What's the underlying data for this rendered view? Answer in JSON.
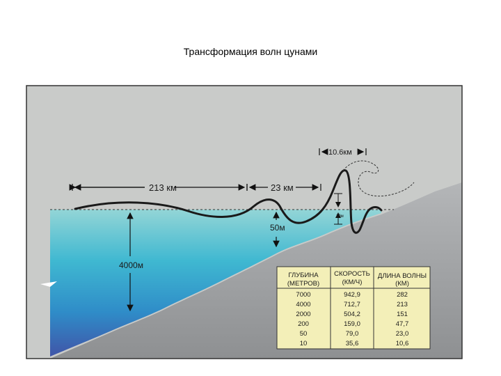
{
  "title": "Трансформация волн цунами",
  "labels": {
    "distance_1": "213 км",
    "distance_2": "23 км",
    "distance_3": "10.6км",
    "wave_height": "10м",
    "depth_50": "50м",
    "depth_4000": "4000м"
  },
  "table": {
    "headers": [
      [
        "ГЛУБИНА",
        "(МЕТРОВ)"
      ],
      [
        "СКОРОСТЬ",
        "(КМ/Ч)"
      ],
      [
        "ДЛИНА ВОЛНЫ",
        "(КМ)"
      ]
    ],
    "rows": [
      [
        "7000",
        "942,9",
        "282"
      ],
      [
        "4000",
        "712,7",
        "213"
      ],
      [
        "2000",
        "504,2",
        "151"
      ],
      [
        "200",
        "159,0",
        "47,7"
      ],
      [
        "50",
        "79,0",
        "23,0"
      ],
      [
        "10",
        "35,6",
        "10,6"
      ]
    ]
  },
  "colors": {
    "sky": "#c9cbc9",
    "water_top": "#8fd2d4",
    "water_bottom": "#3b57a6",
    "land": "#9fa1a3",
    "table_fill": "#f3efb8",
    "wave": "#1a1a1a"
  }
}
